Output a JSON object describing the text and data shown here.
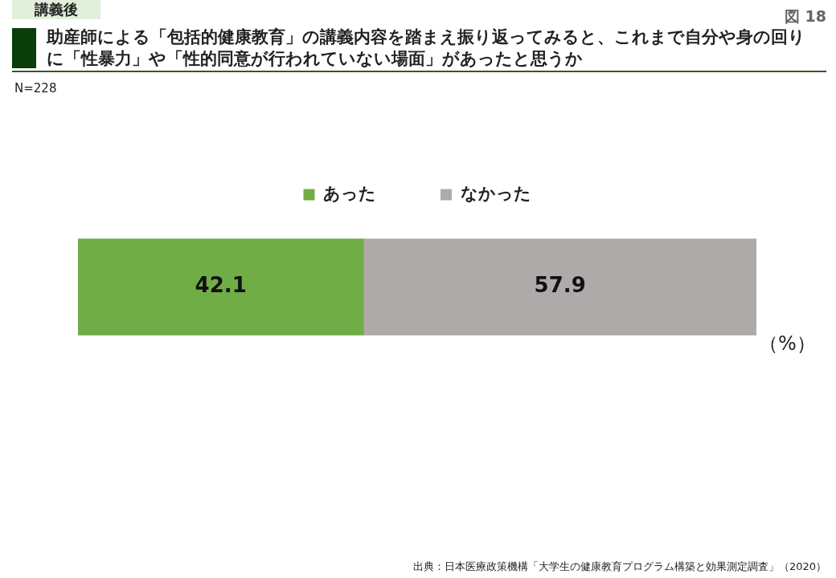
{
  "chart_data": {
    "type": "bar",
    "orientation": "horizontal",
    "stacked": true,
    "tick_labels": false,
    "title": "助産師による「包括的健康教育」の講義内容を踏まえ振り返ってみると、これまで自分や身の回りに「性暴力」や「性的同意が行われていない場面」があったと思うか",
    "subtitle": "N=228",
    "annotations": [
      "講義後",
      "図 18",
      "（%）",
      "出典：日本医療政策機構「大学生の健康教育プログラム構築と効果測定調査」（2020）"
    ],
    "categories": [
      null
    ],
    "series": [
      {
        "name": "あった",
        "color": "#70ad47",
        "values": [
          42.1
        ]
      },
      {
        "name": "なかった",
        "color": "#aeaaaa",
        "values": [
          57.9
        ]
      }
    ],
    "xlim": [
      0,
      100
    ],
    "data_labels": true,
    "legend": "top"
  }
}
